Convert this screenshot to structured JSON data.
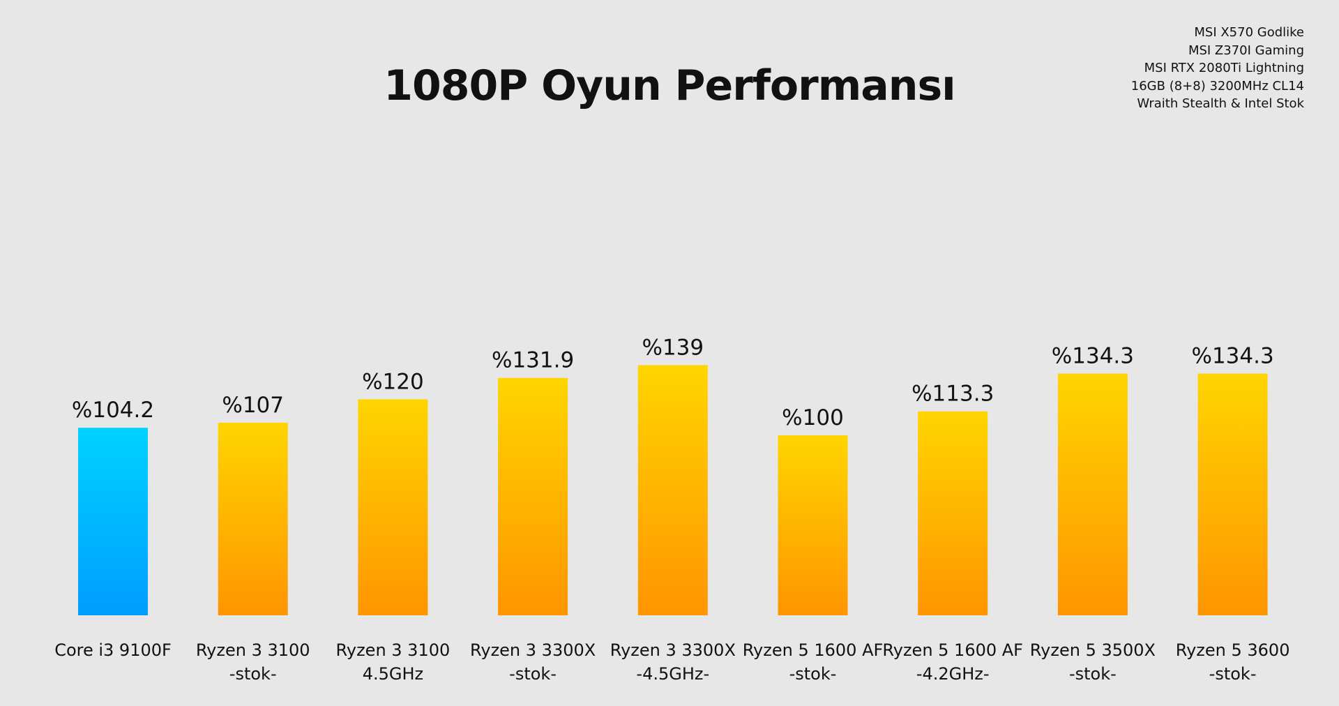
{
  "title": "1080P Oyun Performansı",
  "specs": [
    "MSI X570 Godlike",
    "MSI Z370I Gaming",
    "MSI RTX 2080Ti Lightning",
    "16GB (8+8) 3200MHz CL14",
    "Wraith Stealth & Intel Stok"
  ],
  "colors": {
    "background": "#e8e7e8",
    "intel_top": "#00d2ff",
    "intel_bottom": "#009dff",
    "amd_top": "#ffd500",
    "amd_bottom": "#ff9500"
  },
  "chart_data": {
    "type": "bar",
    "title": "1080P Oyun Performansı",
    "categories": [
      [
        "Core i3 9100F"
      ],
      [
        "Ryzen 3 3100",
        "-stok-"
      ],
      [
        "Ryzen 3 3100",
        "4.5GHz"
      ],
      [
        "Ryzen 3 3300X",
        "-stok-"
      ],
      [
        "Ryzen 3 3300X",
        "-4.5GHz-"
      ],
      [
        "Ryzen 5 1600 AF",
        "-stok-"
      ],
      [
        "Ryzen 5 1600 AF",
        "-4.2GHz-"
      ],
      [
        "Ryzen 5 3500X",
        "-stok-"
      ],
      [
        "Ryzen 5 3600",
        "-stok-"
      ]
    ],
    "values": [
      104.2,
      107,
      120,
      131.9,
      139,
      100,
      113.3,
      134.3,
      134.3
    ],
    "value_labels": [
      "%104.2",
      "%107",
      "%120",
      "%131.9",
      "%139",
      "%100",
      "%113.3",
      "%134.3",
      "%134.3"
    ],
    "bar_color_groups": [
      "intel",
      "amd",
      "amd",
      "amd",
      "amd",
      "amd",
      "amd",
      "amd",
      "amd"
    ],
    "xlabel": "",
    "ylabel": "",
    "grid": false,
    "legend": "none"
  }
}
